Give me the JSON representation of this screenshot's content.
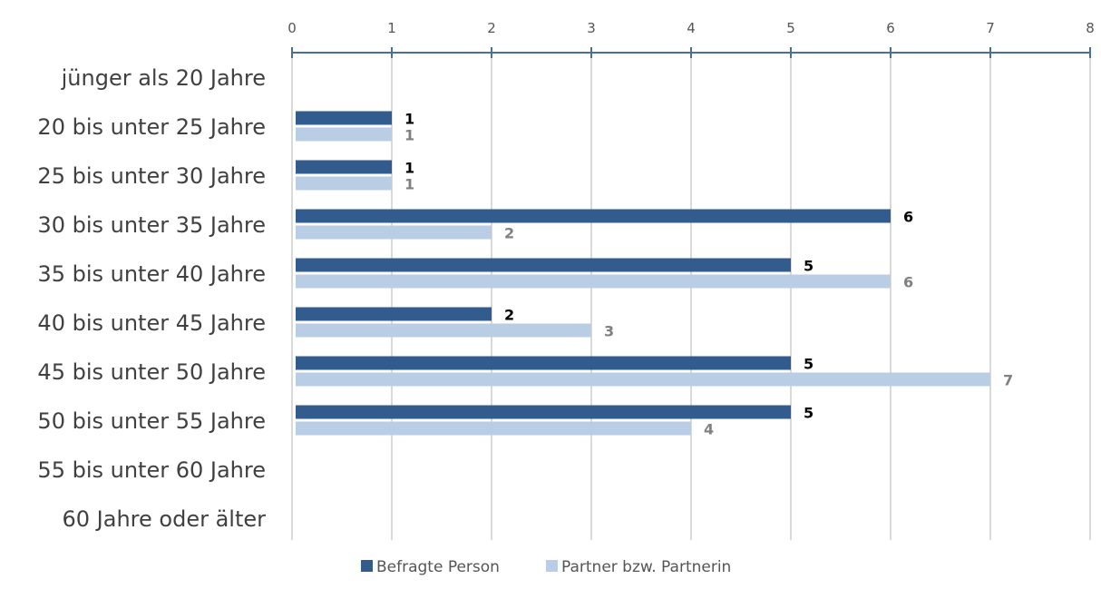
{
  "chart_data": {
    "type": "bar",
    "orientation": "horizontal",
    "categories": [
      "jünger als 20 Jahre",
      "20 bis unter 25 Jahre",
      "25 bis unter 30 Jahre",
      "30 bis unter 35 Jahre",
      "35 bis unter 40 Jahre",
      "40 bis unter 45 Jahre",
      "45 bis unter 50 Jahre",
      "50 bis unter 55 Jahre",
      "55 bis unter 60 Jahre",
      "60 Jahre oder älter"
    ],
    "series": [
      {
        "name": "Befragte Person",
        "color": "#335c8e",
        "label_color": "#000000",
        "values": [
          null,
          1,
          1,
          6,
          5,
          2,
          5,
          5,
          null,
          null
        ]
      },
      {
        "name": "Partner bzw. Partnerin",
        "color": "#b9cde4",
        "label_color": "#808080",
        "values": [
          null,
          1,
          1,
          2,
          6,
          3,
          7,
          4,
          null,
          null
        ]
      }
    ],
    "xlim": [
      0,
      8
    ],
    "x_ticks": [
      0,
      1,
      2,
      3,
      4,
      5,
      6,
      7,
      8
    ],
    "x_axis_position": "top",
    "grid": true,
    "legend_position": "bottom",
    "data_labels": true
  }
}
